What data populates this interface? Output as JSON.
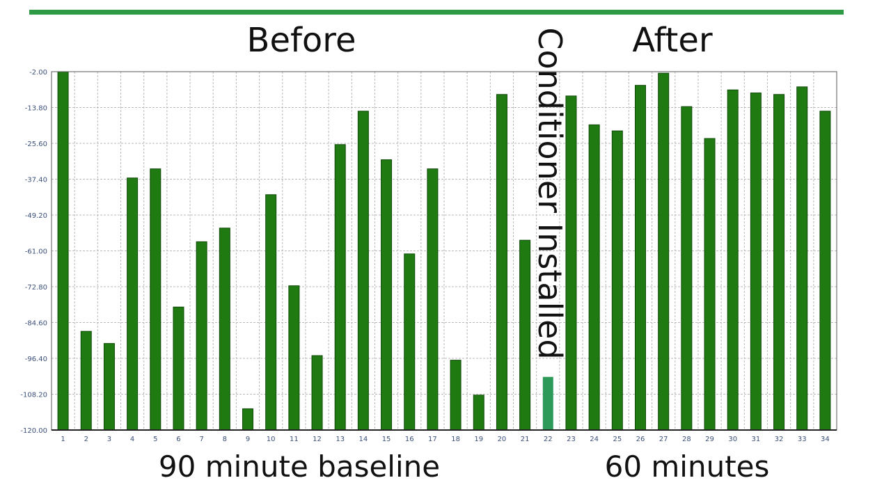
{
  "colors": {
    "accent": "#2e9a44",
    "bar": "#1f7a12",
    "bar_edge": "#0f4a08",
    "highlight_bar": "#2e9a5a",
    "grid": "#b9b9b9",
    "tick_text": "#3b4f7a"
  },
  "labels": {
    "before": "Before",
    "after": "After",
    "baseline_duration": "90 minute baseline",
    "after_duration": "60 minutes",
    "event": "Conditioner Installed"
  },
  "chart_data": {
    "type": "bar",
    "categories": [
      "1",
      "2",
      "3",
      "4",
      "5",
      "6",
      "7",
      "8",
      "9",
      "10",
      "11",
      "12",
      "13",
      "14",
      "15",
      "16",
      "17",
      "18",
      "19",
      "20",
      "21",
      "22",
      "23",
      "24",
      "25",
      "26",
      "27",
      "28",
      "29",
      "30",
      "31",
      "32",
      "33",
      "34"
    ],
    "values": [
      -2.0,
      -87.5,
      -91.5,
      -37.0,
      -34.0,
      -79.5,
      -58.0,
      -53.5,
      -113.0,
      -42.5,
      -72.5,
      -95.5,
      -26.0,
      -15.0,
      -31.0,
      -62.0,
      -34.0,
      -97.0,
      -108.5,
      -9.5,
      -57.5,
      -102.5,
      -10.0,
      -19.5,
      -21.5,
      -6.5,
      -2.5,
      -13.5,
      -24.0,
      -8.0,
      -9.0,
      -9.5,
      -7.0,
      -15.0
    ],
    "highlight_category": "22",
    "yticks": [
      "-2.00",
      "-13.80",
      "-25.60",
      "-37.40",
      "-49.20",
      "-61.00",
      "-72.80",
      "-84.60",
      "-96.40",
      "-108.20",
      "-120.00"
    ],
    "ylim": [
      -120.0,
      -2.0
    ],
    "grid": true
  }
}
